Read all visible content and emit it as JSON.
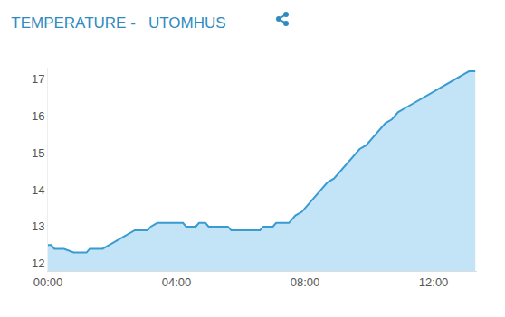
{
  "chart_data": {
    "type": "area",
    "title": "TEMPERATURE -   UTOMHUS",
    "color": "#3a9bd0",
    "x": [
      0.0,
      0.1,
      0.2,
      0.5,
      0.8,
      1.2,
      1.3,
      1.7,
      1.9,
      2.1,
      2.3,
      2.5,
      2.7,
      3.1,
      3.2,
      3.4,
      4.2,
      4.3,
      4.6,
      4.7,
      4.9,
      5.0,
      5.6,
      5.7,
      6.6,
      6.7,
      7.0,
      7.1,
      7.5,
      7.7,
      7.9,
      8.1,
      8.3,
      8.5,
      8.7,
      8.9,
      9.1,
      9.3,
      9.5,
      9.7,
      9.9,
      10.1,
      10.3,
      10.5,
      10.7,
      10.9,
      11.1,
      11.3,
      11.5,
      11.7,
      11.9,
      12.1,
      12.3,
      12.5,
      12.7,
      12.9,
      13.1,
      13.3
    ],
    "values": [
      12.5,
      12.5,
      12.4,
      12.4,
      12.3,
      12.3,
      12.4,
      12.4,
      12.5,
      12.6,
      12.7,
      12.8,
      12.9,
      12.9,
      13.0,
      13.1,
      13.1,
      13.0,
      13.0,
      13.1,
      13.1,
      13.0,
      13.0,
      12.9,
      12.9,
      13.0,
      13.0,
      13.1,
      13.1,
      13.3,
      13.4,
      13.6,
      13.8,
      14.0,
      14.2,
      14.3,
      14.5,
      14.7,
      14.9,
      15.1,
      15.2,
      15.4,
      15.6,
      15.8,
      15.9,
      16.1,
      16.2,
      16.3,
      16.4,
      16.5,
      16.6,
      16.7,
      16.8,
      16.9,
      17.0,
      17.1,
      17.2,
      17.2
    ],
    "xlim": [
      0,
      13.35
    ],
    "xticks": [
      {
        "value": 0,
        "label": "00:00"
      },
      {
        "value": 4,
        "label": "04:00"
      },
      {
        "value": 8,
        "label": "08:00"
      },
      {
        "value": 12,
        "label": "12:00"
      }
    ],
    "ylim": [
      11.8,
      17.3
    ],
    "yticks": [
      12,
      13,
      14,
      15,
      16,
      17
    ],
    "grid": false
  }
}
